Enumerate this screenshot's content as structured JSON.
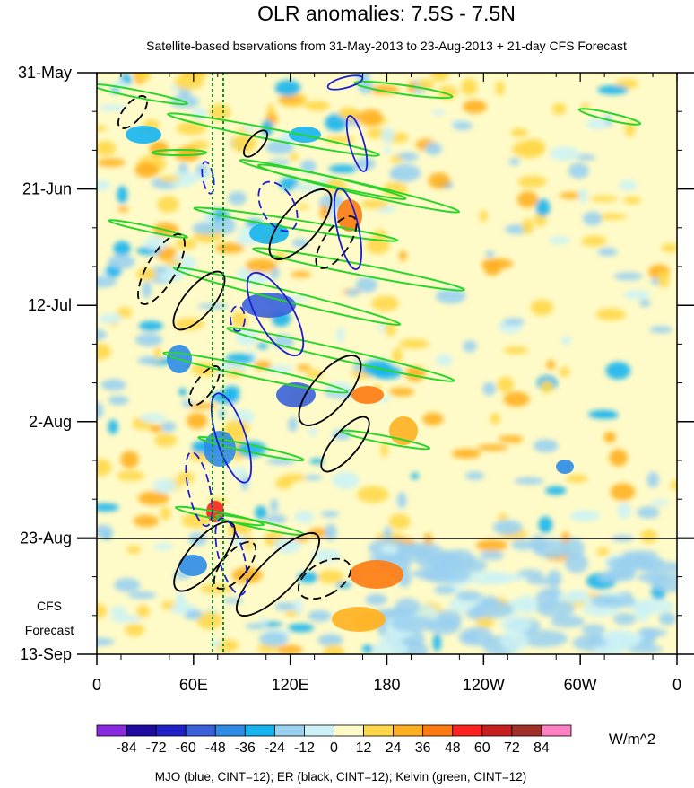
{
  "chart_data": {
    "type": "heatmap",
    "title": "OLR anomalies: 7.5S - 7.5N",
    "subtitle": "Satellite-based bservations from 31-May-2013 to 23-Aug-2013 + 21-day CFS Forecast",
    "x_ticks": [
      "0",
      "60E",
      "120E",
      "180",
      "120W",
      "60W",
      "0"
    ],
    "x_range_deg": [
      0,
      360
    ],
    "y_ticks": [
      "31-May",
      "21-Jun",
      "12-Jul",
      "2-Aug",
      "23-Aug",
      "13-Sep"
    ],
    "y_range": [
      "31-May-2013",
      "13-Sep-2013"
    ],
    "obs_end_date": "23-Aug",
    "forecast_label": [
      "CFS",
      "Forecast"
    ],
    "colorbar": {
      "labels": [
        "-84",
        "-72",
        "-60",
        "-48",
        "-36",
        "-24",
        "-12",
        "0",
        "12",
        "24",
        "36",
        "48",
        "60",
        "72",
        "84"
      ],
      "colors": [
        "#8a2be2",
        "#1e0aa0",
        "#2020c8",
        "#3a60dc",
        "#2e8ce8",
        "#14b4f0",
        "#9ad0f0",
        "#ccf2f5",
        "#fffbc8",
        "#ffd84a",
        "#ffb020",
        "#ff7a10",
        "#ff2020",
        "#c81e1e",
        "#a03028",
        "#ff80c0"
      ],
      "units": "W/m^2"
    },
    "footer": "MJO (blue, CINT=12); ER (black, CINT=12); Kelvin (green, CINT=12)",
    "reference_lines_lon": [
      72,
      80
    ],
    "colors": {
      "mjo": "#1e1ed2",
      "er": "#000000",
      "kelvin": "#2ad52a",
      "ref": "#1a8a2a"
    }
  }
}
